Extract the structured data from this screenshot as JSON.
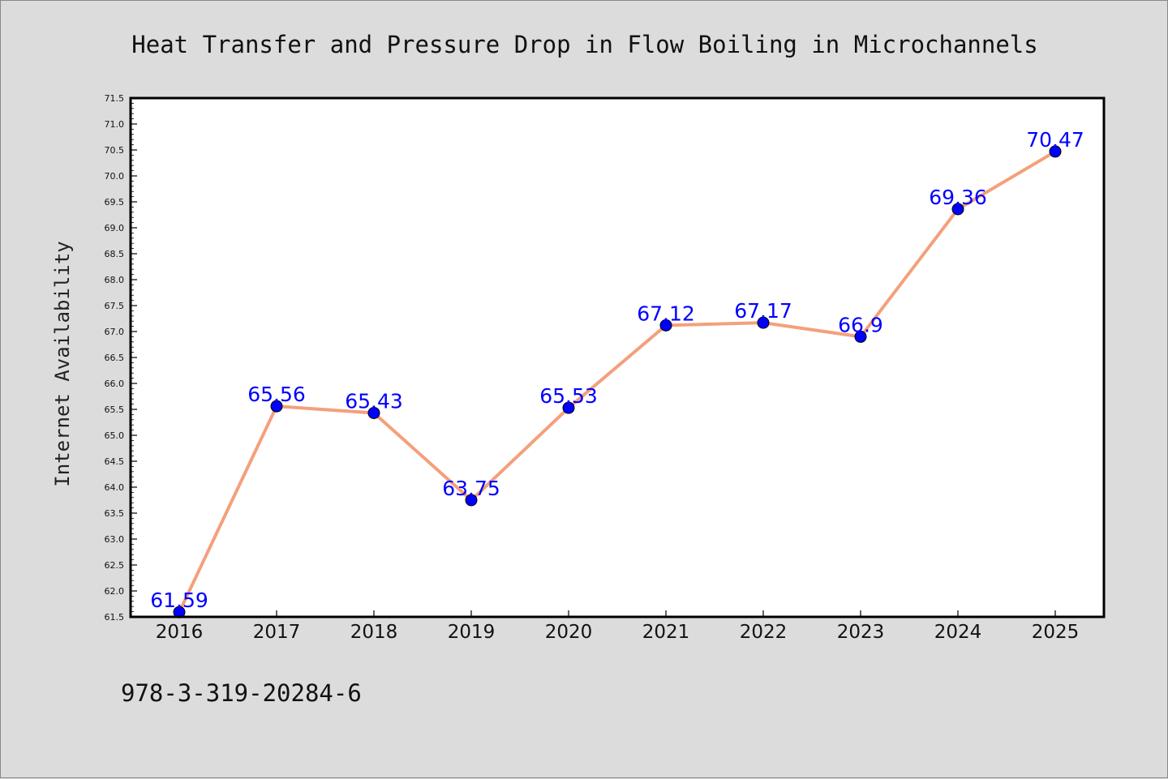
{
  "chart_data": {
    "type": "line",
    "title": "Heat Transfer and Pressure Drop in Flow Boiling in Microchannels",
    "xlabel": "",
    "ylabel": "Internet Availability",
    "categories": [
      "2016",
      "2017",
      "2018",
      "2019",
      "2020",
      "2021",
      "2022",
      "2023",
      "2024",
      "2025"
    ],
    "series": [
      {
        "values": [
          61.59,
          65.56,
          65.43,
          63.75,
          65.53,
          67.12,
          67.17,
          66.9,
          69.36,
          70.47
        ],
        "labels": [
          "61.59",
          "65.56",
          "65.43",
          "63.75",
          "65.53",
          "67.12",
          "67.17",
          "66.9",
          "69.36",
          "70.47"
        ]
      }
    ],
    "ylim": [
      61.5,
      71.5
    ],
    "yticks": [
      "61.5",
      "62.0",
      "62.5",
      "63.0",
      "63.5",
      "64.0",
      "64.5",
      "65.0",
      "65.5",
      "66.0",
      "66.5",
      "67.0",
      "67.5",
      "68.0",
      "68.5",
      "69.0",
      "69.5",
      "70.0",
      "70.5",
      "71.0",
      "71.5"
    ],
    "grid": false,
    "colors": {
      "line": "#f4a07c",
      "marker": "#0000ff",
      "label": "#0000ff",
      "background": "#dcdcdc",
      "plot_background": "#ffffff"
    }
  },
  "footer": {
    "isbn": "978-3-319-20284-6"
  }
}
